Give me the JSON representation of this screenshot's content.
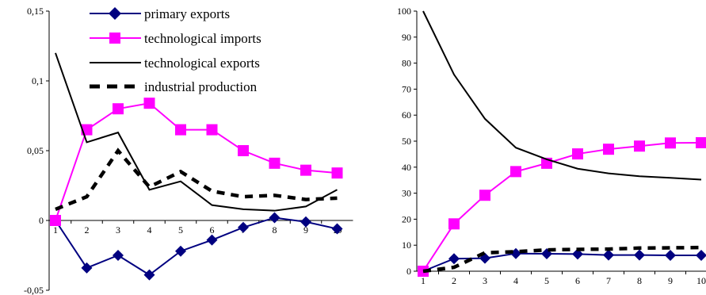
{
  "colors": {
    "primary_exports": "#000080",
    "technological_imports": "#FF00FF",
    "technological_exports": "#000000",
    "industrial_production": "#000000"
  },
  "legend": {
    "primary_exports": "primary exports",
    "technological_imports": "technological imports",
    "technological_exports": "technological exports",
    "industrial_production": "industrial production"
  },
  "chart_data": [
    {
      "type": "line",
      "legend_position": "top-center",
      "x": [
        1,
        2,
        3,
        4,
        5,
        6,
        7,
        8,
        9,
        10
      ],
      "categories": [
        "1",
        "2",
        "3",
        "4",
        "5",
        "6",
        "7",
        "8",
        "9",
        "10"
      ],
      "ylim": [
        -0.05,
        0.15
      ],
      "yticks": [
        -0.05,
        0,
        0.05,
        0.1,
        0.15
      ],
      "ytick_labels": [
        "-0,05",
        "0",
        "0,05",
        "0,1",
        "0,15"
      ],
      "grid": false,
      "series": [
        {
          "key": "primary_exports",
          "name": "primary exports",
          "marker": "diamond",
          "style": "solid",
          "values": [
            0,
            -0.034,
            -0.025,
            -0.039,
            -0.022,
            -0.014,
            -0.005,
            0.002,
            -0.001,
            -0.006
          ]
        },
        {
          "key": "technological_imports",
          "name": "technological imports",
          "marker": "square",
          "style": "solid",
          "values": [
            0,
            0.065,
            0.08,
            0.084,
            0.065,
            0.065,
            0.05,
            0.041,
            0.036,
            0.034
          ]
        },
        {
          "key": "technological_exports",
          "name": "technological exports",
          "marker": "none",
          "style": "solid",
          "values": [
            0.12,
            0.056,
            0.063,
            0.022,
            0.028,
            0.011,
            0.008,
            0.007,
            0.01,
            0.022
          ]
        },
        {
          "key": "industrial_production",
          "name": "industrial production",
          "marker": "none",
          "style": "dashed",
          "values": [
            0.008,
            0.017,
            0.05,
            0.024,
            0.035,
            0.021,
            0.017,
            0.018,
            0.015,
            0.016
          ]
        }
      ]
    },
    {
      "type": "line",
      "x": [
        1,
        2,
        3,
        4,
        5,
        6,
        7,
        8,
        9,
        10
      ],
      "categories": [
        "1",
        "2",
        "3",
        "4",
        "5",
        "6",
        "7",
        "8",
        "9",
        "10"
      ],
      "ylim": [
        0,
        100
      ],
      "yticks": [
        0,
        10,
        20,
        30,
        40,
        50,
        60,
        70,
        80,
        90,
        100
      ],
      "ytick_labels": [
        "0",
        "10",
        "20",
        "30",
        "40",
        "50",
        "60",
        "70",
        "80",
        "90",
        "100"
      ],
      "grid": false,
      "series": [
        {
          "key": "primary_exports",
          "name": "primary exports",
          "marker": "diamond",
          "style": "solid",
          "values": [
            0,
            4.8,
            5,
            6.8,
            6.7,
            6.6,
            6.2,
            6.2,
            6.1,
            6.1
          ]
        },
        {
          "key": "technological_imports",
          "name": "technological imports",
          "marker": "square",
          "style": "solid",
          "values": [
            0,
            18.2,
            29.2,
            38.3,
            41.5,
            45.1,
            46.9,
            48.1,
            49.3,
            49.4
          ]
        },
        {
          "key": "technological_exports",
          "name": "technological exports",
          "marker": "none",
          "style": "solid",
          "values": [
            100,
            75.6,
            58.6,
            47.5,
            43,
            39.4,
            37.6,
            36.5,
            35.9,
            35.2
          ]
        },
        {
          "key": "industrial_production",
          "name": "industrial production",
          "marker": "none",
          "style": "dashed",
          "values": [
            0,
            1.5,
            7.1,
            7.5,
            8.2,
            8.4,
            8.5,
            8.9,
            9,
            9.1
          ]
        }
      ]
    }
  ]
}
